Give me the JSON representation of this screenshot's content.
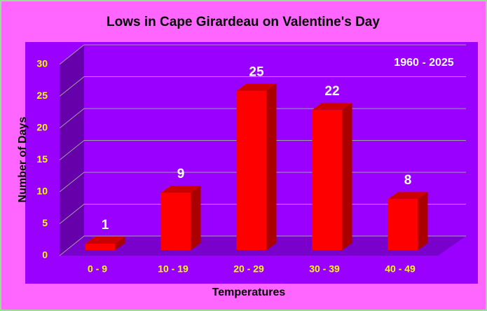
{
  "chart_data": {
    "type": "bar3d",
    "title": "Lows in Cape Girardeau on Valentine's Day",
    "annotation": "1960 - 2025",
    "xlabel": "Temperatures",
    "ylabel": "Number of Days",
    "categories": [
      "0 - 9",
      "10 - 19",
      "20 - 29",
      "30 - 39",
      "40 - 49"
    ],
    "values": [
      1,
      9,
      25,
      22,
      8
    ],
    "color": "#ff0000",
    "ylim": [
      0,
      30
    ],
    "yticks": [
      0,
      5,
      10,
      15,
      20,
      25,
      30
    ],
    "grid": true
  }
}
